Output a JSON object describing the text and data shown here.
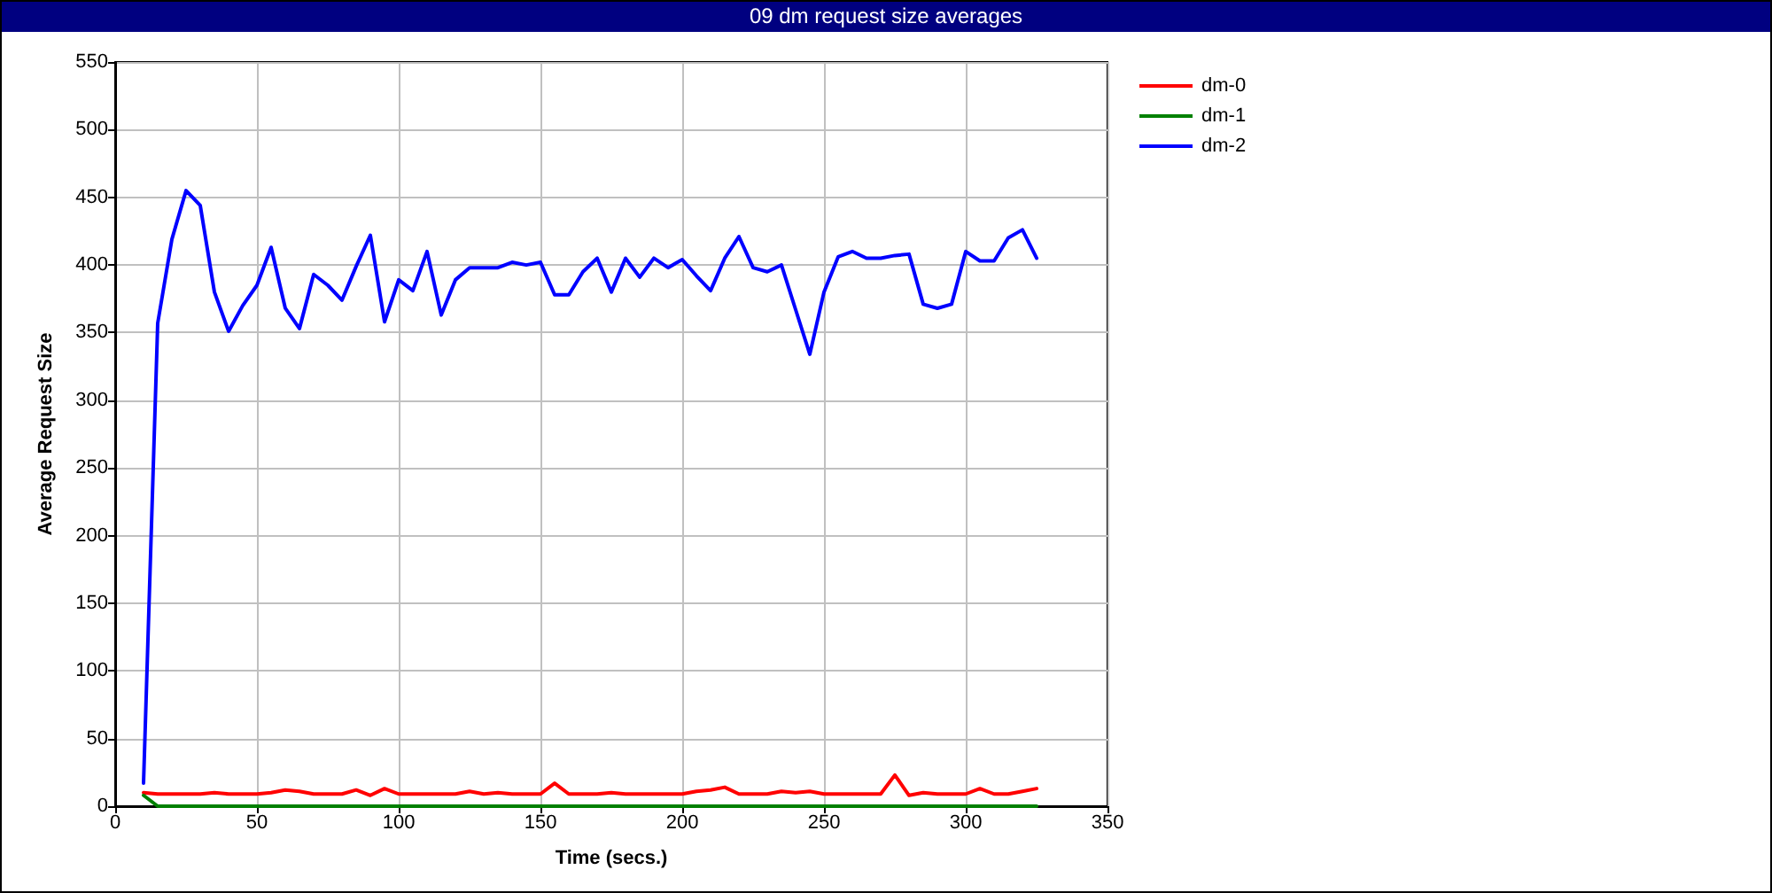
{
  "chart_data": {
    "type": "line",
    "title": "09 dm request size averages",
    "xlabel": "Time (secs.)",
    "ylabel": "Average Request Size",
    "x": [
      10,
      15,
      20,
      25,
      30,
      35,
      40,
      45,
      50,
      55,
      60,
      65,
      70,
      75,
      80,
      85,
      90,
      95,
      100,
      105,
      110,
      115,
      120,
      125,
      130,
      135,
      140,
      145,
      150,
      155,
      160,
      165,
      170,
      175,
      180,
      185,
      190,
      195,
      200,
      205,
      210,
      215,
      220,
      225,
      230,
      235,
      240,
      245,
      250,
      255,
      260,
      265,
      270,
      275,
      280,
      285,
      290,
      295,
      300,
      305,
      310,
      315,
      320,
      325
    ],
    "series": [
      {
        "name": "dm-0",
        "color": "#ff0000",
        "values": [
          10,
          9,
          9,
          9,
          9,
          10,
          9,
          9,
          9,
          10,
          12,
          11,
          9,
          9,
          9,
          12,
          8,
          13,
          9,
          9,
          9,
          9,
          9,
          11,
          9,
          10,
          9,
          9,
          9,
          17,
          9,
          9,
          9,
          10,
          9,
          9,
          9,
          9,
          9,
          11,
          12,
          14,
          9,
          9,
          9,
          11,
          10,
          11,
          9,
          9,
          9,
          9,
          9,
          23,
          8,
          10,
          9,
          9,
          9,
          13,
          9,
          9,
          11,
          13
        ]
      },
      {
        "name": "dm-1",
        "color": "#008000",
        "values": [
          8,
          0,
          0,
          0,
          0,
          0,
          0,
          0,
          0,
          0,
          0,
          0,
          0,
          0,
          0,
          0,
          0,
          0,
          0,
          0,
          0,
          0,
          0,
          0,
          0,
          0,
          0,
          0,
          0,
          0,
          0,
          0,
          0,
          0,
          0,
          0,
          0,
          0,
          0,
          0,
          0,
          0,
          0,
          0,
          0,
          0,
          0,
          0,
          0,
          0,
          0,
          0,
          0,
          0,
          0,
          0,
          0,
          0,
          0,
          0,
          0,
          0,
          0,
          0
        ]
      },
      {
        "name": "dm-2",
        "color": "#0000ff",
        "values": [
          17,
          357,
          419,
          455,
          444,
          380,
          351,
          370,
          385,
          413,
          368,
          353,
          393,
          385,
          374,
          399,
          422,
          358,
          389,
          381,
          410,
          363,
          389,
          398,
          398,
          398,
          402,
          400,
          402,
          378,
          378,
          395,
          405,
          380,
          405,
          391,
          405,
          398,
          404,
          392,
          381,
          405,
          421,
          398,
          395,
          400,
          367,
          334,
          380,
          406,
          410,
          405,
          405,
          407,
          408,
          371,
          368,
          371,
          410,
          403,
          403,
          420,
          426,
          405
        ]
      }
    ],
    "xlim": [
      0,
      350
    ],
    "ylim": [
      0,
      550
    ],
    "xticks": [
      0,
      50,
      100,
      150,
      200,
      250,
      300,
      350
    ],
    "yticks": [
      0,
      50,
      100,
      150,
      200,
      250,
      300,
      350,
      400,
      450,
      500,
      550
    ],
    "grid": true,
    "legend": "top right",
    "marker": "none",
    "line_style": "solid"
  }
}
